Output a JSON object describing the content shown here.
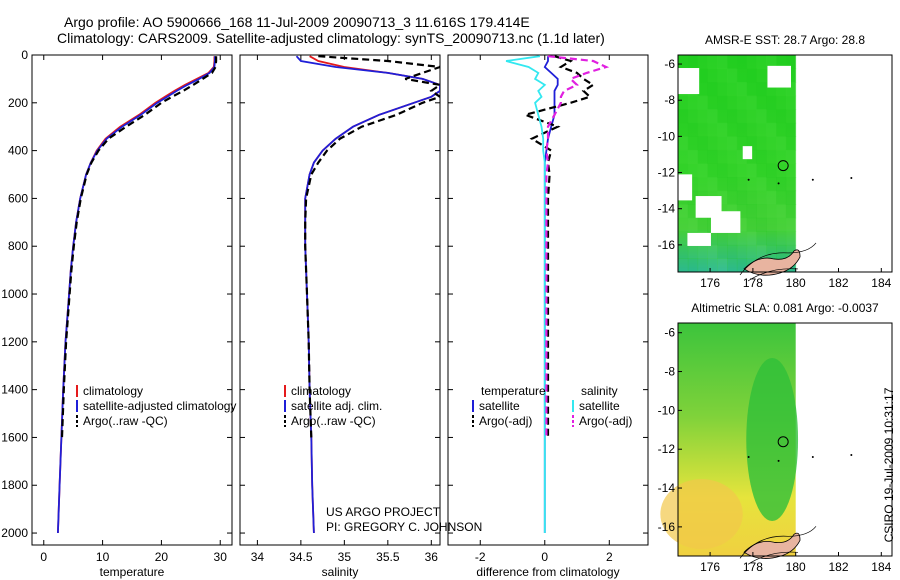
{
  "title": {
    "line1": "Argo profile: AO 5900666_168 11-Jul-2009 20090713_3 11.616S 179.414E",
    "line2": "Climatology: CARS2009. Satellite-adjusted climatology: synTS_20090713.nc (1.1d later)"
  },
  "side_stamp": "CSIRO 19-Jul-2009 10:31:17",
  "project_note": [
    "US ARGO PROJECT",
    "PI: GREGORY C. JOHNSON"
  ],
  "colors": {
    "climatology": "#e41a1c",
    "satellite": "#1f1fd8",
    "argo": "#000000",
    "satellite_sal": "#33e8f0",
    "argo_sal": "#e020e0"
  },
  "chart_data": [
    {
      "type": "line",
      "panel": "temperature",
      "xlabel": "temperature",
      "ylabel": "",
      "xlim": [
        -2,
        32
      ],
      "ylim": [
        2050,
        0
      ],
      "xticks": [
        0,
        10,
        20,
        30
      ],
      "yticks": [
        0,
        200,
        400,
        600,
        800,
        1000,
        1200,
        1400,
        1600,
        1800,
        2000
      ],
      "legend": [
        "climatology",
        "satellite-adjusted climatology",
        "Argo(..raw -QC)"
      ],
      "legend_position": "lower-center",
      "depth": [
        5,
        25,
        50,
        75,
        100,
        125,
        150,
        175,
        200,
        250,
        300,
        350,
        400,
        450,
        500,
        600,
        700,
        800,
        900,
        1000,
        1200,
        1400,
        1600,
        1800,
        2000
      ],
      "series": [
        {
          "name": "climatology",
          "style": "solid",
          "color": "#e41a1c",
          "values": [
            29.0,
            29.0,
            28.9,
            28.0,
            26.0,
            24.0,
            22.2,
            20.6,
            19.0,
            16.2,
            13.0,
            10.5,
            9.0,
            8.0,
            7.2,
            6.2,
            5.5,
            5.0,
            4.6,
            4.3,
            3.7,
            3.3,
            3.0,
            2.7,
            2.4
          ]
        },
        {
          "name": "satellite-adjusted climatology",
          "style": "solid",
          "color": "#1f1fd8",
          "values": [
            29.1,
            29.1,
            29.0,
            28.2,
            26.4,
            24.4,
            22.6,
            21.0,
            19.3,
            16.5,
            13.3,
            10.7,
            9.1,
            8.0,
            7.2,
            6.2,
            5.5,
            5.0,
            4.6,
            4.3,
            3.7,
            3.3,
            3.0,
            2.7,
            2.4
          ]
        },
        {
          "name": "Argo(..raw -QC)",
          "style": "dashed",
          "color": "#000000",
          "values": [
            29.3,
            29.3,
            29.2,
            28.6,
            27.0,
            25.4,
            23.7,
            21.8,
            20.0,
            17.2,
            14.0,
            11.0,
            9.3,
            8.1,
            7.3,
            6.3,
            5.6,
            5.1,
            4.7,
            4.4,
            3.8,
            3.4,
            3.1,
            null,
            null
          ]
        }
      ]
    },
    {
      "type": "line",
      "panel": "salinity",
      "xlabel": "salinity",
      "xlim": [
        33.8,
        36.1
      ],
      "ylim": [
        2050,
        0
      ],
      "xticks": [
        34,
        34.5,
        35,
        35.5,
        36
      ],
      "legend": [
        "climatology",
        "satellite adj. clim.",
        "Argo(..raw -QC)"
      ],
      "legend_position": "lower-center",
      "depth": [
        5,
        25,
        50,
        75,
        100,
        125,
        150,
        175,
        200,
        250,
        300,
        350,
        400,
        450,
        500,
        600,
        700,
        800,
        900,
        1000,
        1200,
        1400,
        1600,
        1800,
        2000
      ],
      "series": [
        {
          "name": "climatology",
          "style": "solid",
          "color": "#e41a1c",
          "values": [
            34.6,
            34.7,
            35.0,
            35.5,
            35.9,
            36.1,
            36.1,
            36.0,
            35.8,
            35.4,
            35.1,
            34.9,
            34.75,
            34.65,
            34.6,
            34.55,
            34.55,
            34.55,
            34.56,
            34.57,
            34.59,
            34.6,
            34.62,
            34.63,
            34.65
          ]
        },
        {
          "name": "satellite adj. clim.",
          "style": "solid",
          "color": "#1f1fd8",
          "values": [
            34.45,
            34.5,
            34.9,
            35.5,
            35.9,
            36.1,
            36.1,
            36.0,
            35.8,
            35.4,
            35.1,
            34.9,
            34.75,
            34.65,
            34.6,
            34.55,
            34.55,
            34.55,
            34.56,
            34.57,
            34.59,
            34.6,
            34.62,
            34.63,
            34.65
          ]
        },
        {
          "name": "Argo(..raw -QC)",
          "style": "dashed",
          "color": "#000000",
          "values": [
            34.7,
            35.5,
            36.1,
            35.9,
            35.7,
            36.1,
            36.0,
            36.1,
            35.9,
            35.6,
            35.2,
            34.95,
            34.8,
            34.7,
            34.62,
            34.56,
            34.55,
            34.55,
            34.56,
            34.57,
            34.59,
            34.6,
            34.62,
            null,
            null
          ]
        }
      ]
    },
    {
      "type": "line",
      "panel": "difference",
      "xlabel": "difference from climatology",
      "xlim": [
        -3,
        3.2
      ],
      "ylim": [
        2050,
        0
      ],
      "xticks": [
        -2,
        0,
        2
      ],
      "legend_groups": [
        {
          "title": "temperature",
          "entries": [
            "satellite",
            "Argo(-adj)"
          ]
        },
        {
          "title": "salinity",
          "entries": [
            "satellite",
            "Argo(-adj)"
          ]
        }
      ],
      "legend_position": "lower-center",
      "depth": [
        5,
        25,
        50,
        75,
        100,
        125,
        150,
        175,
        200,
        250,
        300,
        350,
        400,
        450,
        500,
        600,
        700,
        800,
        900,
        1000,
        1200,
        1400,
        1600,
        1800,
        2000
      ],
      "series": [
        {
          "name": "temperature satellite",
          "style": "solid",
          "color": "#1f1fd8",
          "values": [
            0.1,
            0.1,
            0.0,
            0.2,
            0.4,
            0.4,
            0.3,
            0.3,
            0.3,
            0.3,
            0.2,
            0.1,
            0.05,
            0.0,
            0.0,
            0.0,
            0.0,
            0.0,
            0.0,
            0.0,
            0.0,
            0.0,
            0.0,
            0.0,
            0.0
          ]
        },
        {
          "name": "temperature Argo(-adj)",
          "style": "dashed",
          "color": "#000000",
          "values": [
            0.3,
            0.8,
            0.5,
            1.0,
            1.2,
            1.5,
            1.2,
            1.4,
            0.8,
            -0.6,
            0.4,
            -0.4,
            0.2,
            0.1,
            0.15,
            0.1,
            0.1,
            0.1,
            0.1,
            0.1,
            0.1,
            0.1,
            0.1,
            null,
            null
          ]
        },
        {
          "name": "salinity satellite",
          "style": "solid",
          "color": "#33e8f0",
          "values": [
            -0.15,
            -1.2,
            -0.5,
            -0.2,
            -0.3,
            0.0,
            -0.2,
            -0.1,
            -0.3,
            -0.2,
            -0.1,
            -0.05,
            -0.05,
            0.0,
            0.0,
            0.0,
            0.0,
            0.0,
            0.0,
            0.0,
            0.0,
            0.0,
            0.0,
            0.0,
            0.0
          ]
        },
        {
          "name": "salinity Argo(-adj)",
          "style": "dashed",
          "color": "#e020e0",
          "values": [
            0.1,
            1.5,
            1.9,
            1.3,
            0.8,
            1.0,
            0.6,
            0.5,
            0.5,
            0.3,
            0.1,
            0.1,
            0.05,
            0.1,
            0.05,
            0.05,
            0.05,
            0.05,
            0.05,
            0.05,
            0.05,
            0.05,
            0.05,
            null,
            null
          ]
        }
      ]
    },
    {
      "type": "heatmap",
      "panel": "sst-map",
      "title": "AMSR-E SST: 28.7 Argo: 28.8",
      "xlim": [
        174.5,
        184.5
      ],
      "ylim": [
        -17.5,
        -5.5
      ],
      "xticks": [
        176,
        178,
        180,
        182,
        184
      ],
      "yticks": [
        -6,
        -8,
        -10,
        -12,
        -14,
        -16
      ],
      "float_position": {
        "lon": 179.414,
        "lat": -11.616
      }
    },
    {
      "type": "heatmap",
      "panel": "sla-map",
      "title": "Altimetric SLA: 0.081 Argo: -0.0037",
      "xlim": [
        174.5,
        184.5
      ],
      "ylim": [
        -17.5,
        -5.5
      ],
      "xticks": [
        176,
        178,
        180,
        182,
        184
      ],
      "yticks": [
        -6,
        -8,
        -10,
        -12,
        -14,
        -16
      ],
      "float_position": {
        "lon": 179.414,
        "lat": -11.616
      }
    }
  ]
}
